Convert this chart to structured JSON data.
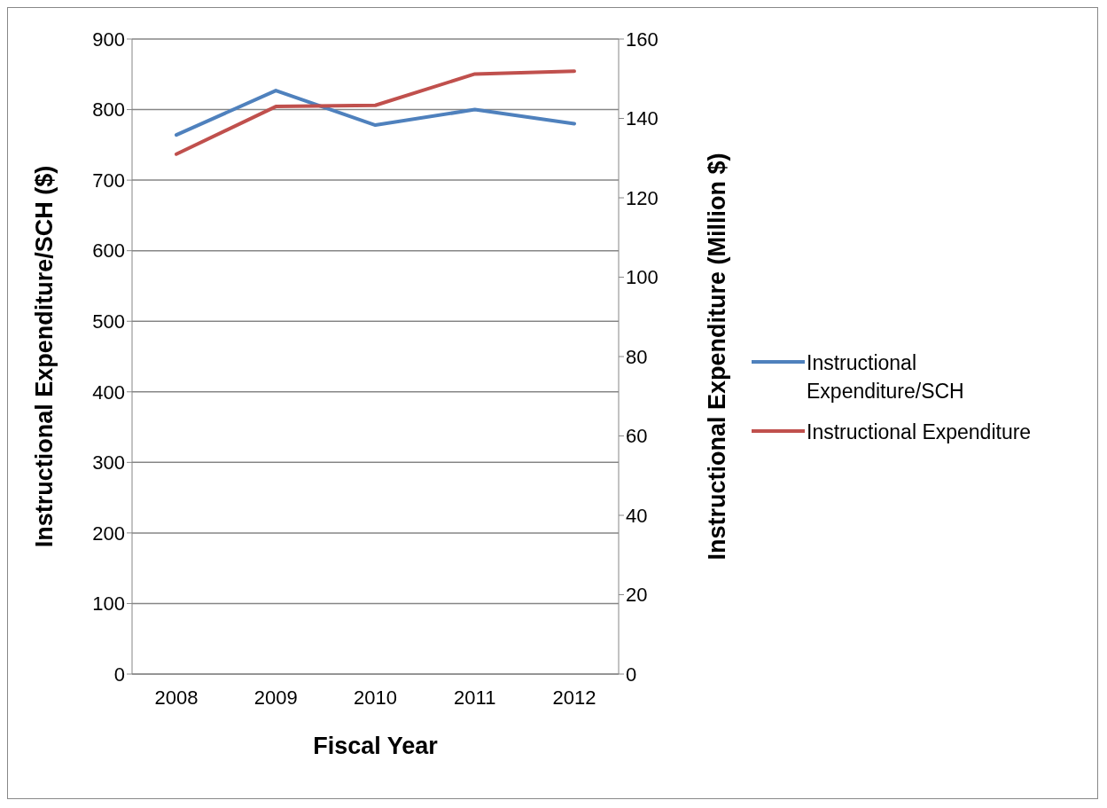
{
  "chart_data": {
    "type": "line",
    "xlabel": "Fiscal Year",
    "ylabel": "Instructional Expenditure/SCH ($)",
    "y2label": "Instructional Expenditure (Million $)",
    "categories": [
      "2008",
      "2009",
      "2010",
      "2011",
      "2012"
    ],
    "series": [
      {
        "name": "Instructional Expenditure/SCH",
        "color": "#4f81bd",
        "values": [
          764,
          827,
          778,
          800,
          780
        ]
      },
      {
        "name": "Instructional Expenditure",
        "color": "#c0504d",
        "axis": "y2",
        "values": [
          131,
          143,
          143.3,
          151.2,
          151.9
        ]
      }
    ],
    "ylim": [
      0,
      900
    ],
    "yticks": [
      0,
      100,
      200,
      300,
      400,
      500,
      600,
      700,
      800,
      900
    ],
    "y2lim": [
      0,
      160
    ],
    "y2ticks": [
      0,
      20,
      40,
      60,
      80,
      100,
      120,
      140,
      160
    ],
    "grid": "y",
    "legend": "right",
    "marker": "none",
    "line_style": "solid"
  }
}
